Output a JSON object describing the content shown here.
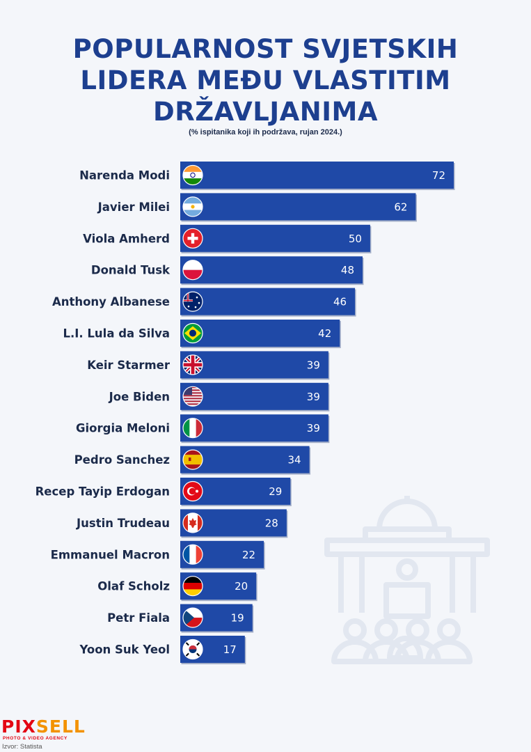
{
  "title": {
    "line1": "POPULARNOST SVJETSKIH",
    "line2": "LIDERA MEĐU VLASTITIM",
    "line3": "DRŽAVLJANIMA"
  },
  "subtitle": "(% ispitanika koji ih podržava, rujan 2024.)",
  "chart_data": {
    "type": "bar",
    "orientation": "horizontal",
    "categories": [
      "Narenda Modi",
      "Javier Milei",
      "Viola Amherd",
      "Donald Tusk",
      "Anthony Albanese",
      "L.I. Lula da Silva",
      "Keir Starmer",
      "Joe Biden",
      "Giorgia Meloni",
      "Pedro Sanchez",
      "Recep Tayip Erdogan",
      "Justin Trudeau",
      "Emmanuel Macron",
      "Olaf Scholz",
      "Petr Fiala",
      "Yoon Suk Yeol"
    ],
    "values": [
      72,
      62,
      50,
      48,
      46,
      42,
      39,
      39,
      39,
      34,
      29,
      28,
      22,
      20,
      19,
      17
    ],
    "flags": [
      "india-flag-icon",
      "argentina-flag-icon",
      "switzerland-flag-icon",
      "poland-flag-icon",
      "australia-flag-icon",
      "brazil-flag-icon",
      "uk-flag-icon",
      "usa-flag-icon",
      "italy-flag-icon",
      "spain-flag-icon",
      "turkey-flag-icon",
      "canada-flag-icon",
      "france-flag-icon",
      "germany-flag-icon",
      "czechia-flag-icon",
      "south-korea-flag-icon"
    ],
    "bar_color": "#1f49a7",
    "xlim": [
      0,
      72
    ],
    "grid": false,
    "data_labels": true
  },
  "logo": {
    "part1": "PIX",
    "part2": "SELL",
    "tagline": "PHOTO & VIDEO AGENCY"
  },
  "source": "Izvor: Statista"
}
